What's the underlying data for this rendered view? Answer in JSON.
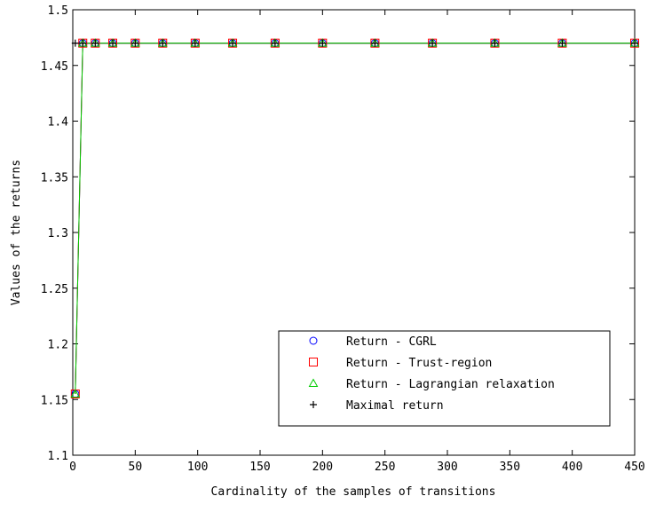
{
  "chart_data": {
    "type": "line",
    "title": "",
    "xlabel": "Cardinality of the samples of transitions",
    "ylabel": "Values of the returns",
    "xlim": [
      0,
      450
    ],
    "ylim": [
      1.1,
      1.5
    ],
    "xticks": [
      0,
      50,
      100,
      150,
      200,
      250,
      300,
      350,
      400,
      450
    ],
    "xtick_labels": [
      "0",
      "50",
      "100",
      "150",
      "200",
      "250",
      "300",
      "350",
      "400",
      "450"
    ],
    "yticks": [
      1.1,
      1.15,
      1.2,
      1.25,
      1.3,
      1.35,
      1.4,
      1.45,
      1.5
    ],
    "ytick_labels": [
      "1.1",
      "1.15",
      "1.2",
      "1.25",
      "1.3",
      "1.35",
      "1.4",
      "1.45",
      "1.5"
    ],
    "grid": false,
    "legend_position": "bottom-right",
    "x": [
      2,
      8,
      18,
      32,
      50,
      72,
      98,
      128,
      162,
      200,
      242,
      288,
      338,
      392,
      450
    ],
    "series": [
      {
        "name": "Return - CGRL",
        "marker": "circle",
        "color": "#0000ff",
        "values": [
          1.155,
          1.47,
          1.47,
          1.47,
          1.47,
          1.47,
          1.47,
          1.47,
          1.47,
          1.47,
          1.47,
          1.47,
          1.47,
          1.47,
          1.47
        ]
      },
      {
        "name": "Return - Trust-region",
        "marker": "square",
        "color": "#ff0000",
        "values": [
          1.155,
          1.47,
          1.47,
          1.47,
          1.47,
          1.47,
          1.47,
          1.47,
          1.47,
          1.47,
          1.47,
          1.47,
          1.47,
          1.47,
          1.47
        ]
      },
      {
        "name": "Return - Lagrangian relaxation",
        "marker": "triangle",
        "color": "#00cc00",
        "values": [
          1.155,
          1.47,
          1.47,
          1.47,
          1.47,
          1.47,
          1.47,
          1.47,
          1.47,
          1.47,
          1.47,
          1.47,
          1.47,
          1.47,
          1.47
        ]
      },
      {
        "name": "Maximal return",
        "marker": "plus",
        "color": "#000000",
        "values": [
          1.47,
          1.47,
          1.47,
          1.47,
          1.47,
          1.47,
          1.47,
          1.47,
          1.47,
          1.47,
          1.47,
          1.47,
          1.47,
          1.47,
          1.47
        ]
      }
    ]
  }
}
